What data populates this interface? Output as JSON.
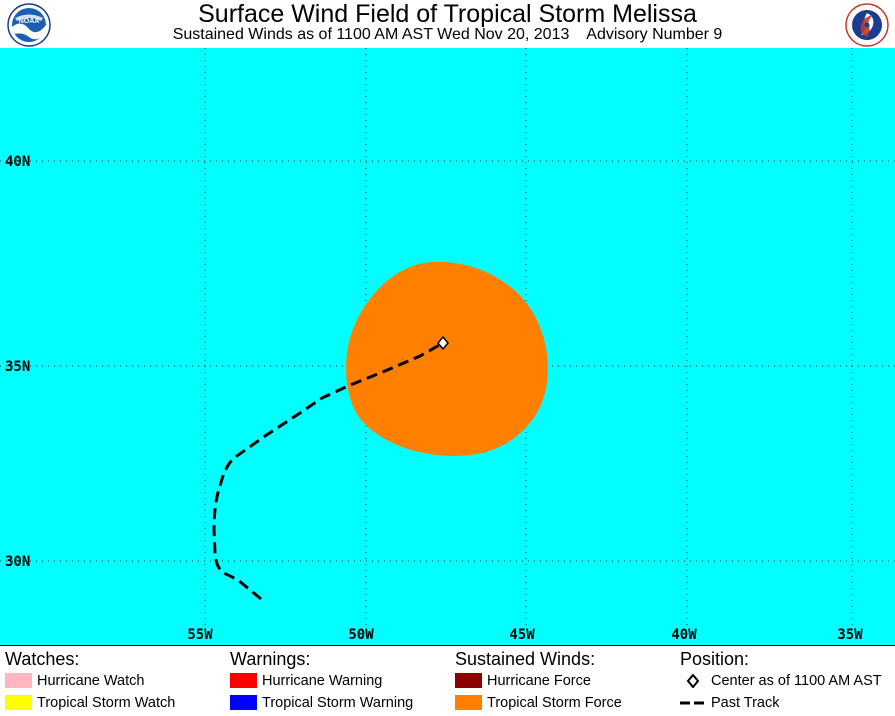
{
  "header": {
    "title": "Surface Wind Field of Tropical Storm Melissa",
    "subtitle": "Sustained Winds as of 1100 AM AST Wed Nov 20, 2013    Advisory Number 9",
    "left_logo": "noaa-logo",
    "right_logo": "national-weather-service-logo"
  },
  "map": {
    "background_color": "#00ffff",
    "lat_labels": [
      "40N",
      "35N",
      "30N"
    ],
    "lon_labels": [
      "55W",
      "50W",
      "45W",
      "40W",
      "35W"
    ],
    "storm": {
      "name": "Tropical Storm Melissa",
      "wind_field_color": "#ff8000",
      "center_marker": "diamond",
      "past_track_style": "dashed"
    }
  },
  "legend": {
    "watches": {
      "heading": "Watches:",
      "items": [
        {
          "label": "Hurricane Watch",
          "color": "#ffb6c1"
        },
        {
          "label": "Tropical Storm Watch",
          "color": "#ffff00"
        }
      ]
    },
    "warnings": {
      "heading": "Warnings:",
      "items": [
        {
          "label": "Hurricane Warning",
          "color": "#ff0000"
        },
        {
          "label": "Tropical Storm Warning",
          "color": "#0000ff"
        }
      ]
    },
    "sustained_winds": {
      "heading": "Sustained Winds:",
      "items": [
        {
          "label": "Hurricane Force",
          "color": "#8b0000"
        },
        {
          "label": "Tropical Storm Force",
          "color": "#ff8000"
        }
      ]
    },
    "position": {
      "heading": "Position:",
      "center_label": "Center as of 1100 AM AST",
      "track_label": "Past Track"
    }
  }
}
